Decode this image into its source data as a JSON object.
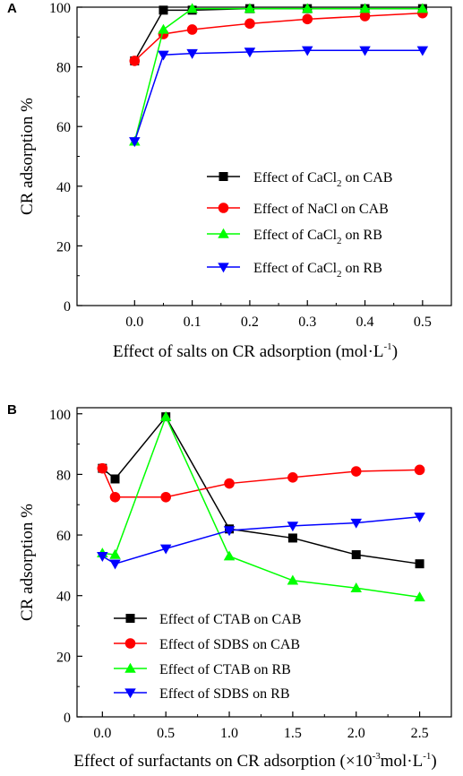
{
  "chart_data": [
    {
      "panel": "A",
      "type": "line",
      "xlabel": "Effect of salts on CR adsorption (mol·L",
      "xlabel_sup": "-1",
      "xlabel_end": ")",
      "ylabel": "CR adsorption %",
      "xlim": [
        -0.1,
        0.55
      ],
      "ylim": [
        0,
        100
      ],
      "xticks": [
        "0.0",
        "0.1",
        "0.2",
        "0.3",
        "0.4",
        "0.5"
      ],
      "yticks": [
        "0",
        "20",
        "40",
        "60",
        "80",
        "100"
      ],
      "x": [
        0,
        0.05,
        0.1,
        0.2,
        0.3,
        0.4,
        0.5
      ],
      "legend_position": "center-right",
      "series": [
        {
          "name": "Effect of CaCl",
          "name_sub": "2",
          "name_end": " on CAB",
          "color": "#000000",
          "marker": "square",
          "values": [
            82,
            99,
            99,
            99.5,
            99.5,
            99.5,
            99.5
          ]
        },
        {
          "name": "Effect of NaCl on CAB",
          "color": "#ff0000",
          "marker": "circle",
          "values": [
            82,
            91,
            92.5,
            94.5,
            96,
            97,
            98
          ]
        },
        {
          "name": "Effect of CaCl",
          "name_sub": "2",
          "name_end": " on RB",
          "color": "#00ff00",
          "marker": "triangle-up",
          "values": [
            55,
            92.5,
            99.5,
            99.5,
            99.5,
            99.5,
            99.5
          ]
        },
        {
          "name": "Effect of CaCl",
          "name_sub": "2",
          "name_end": " on RB",
          "color": "#0000ff",
          "marker": "triangle-down",
          "values": [
            55,
            84,
            84.5,
            85,
            85.5,
            85.5,
            85.5
          ]
        }
      ]
    },
    {
      "panel": "B",
      "type": "line",
      "xlabel": "Effect of surfactants on CR adsorption (×10",
      "xlabel_sup": "-3",
      "xlabel_end": "mol·L",
      "xlabel_sup2": "-1",
      "xlabel_end2": ")",
      "ylabel": "CR adsorption %",
      "xlim": [
        -0.2,
        2.75
      ],
      "ylim": [
        0,
        102
      ],
      "xticks": [
        "0.0",
        "0.5",
        "1.0",
        "1.5",
        "2.0",
        "2.5"
      ],
      "yticks": [
        "0",
        "20",
        "40",
        "60",
        "80",
        "100"
      ],
      "x": [
        0,
        0.1,
        0.5,
        1.0,
        1.5,
        2.0,
        2.5
      ],
      "legend_position": "bottom-left",
      "series": [
        {
          "name": "Effect of CTAB on CAB",
          "color": "#000000",
          "marker": "square",
          "values": [
            82,
            78.5,
            99,
            62,
            59,
            53.5,
            50.5
          ]
        },
        {
          "name": "Effect of SDBS on CAB",
          "color": "#ff0000",
          "marker": "circle",
          "values": [
            82,
            72.5,
            72.5,
            77,
            79,
            81,
            81.5
          ]
        },
        {
          "name": "Effect of CTAB on RB",
          "color": "#00ff00",
          "marker": "triangle-up",
          "values": [
            54,
            53.5,
            99,
            53,
            45,
            42.5,
            39.5
          ]
        },
        {
          "name": "Effect of SDBS on RB",
          "color": "#0000ff",
          "marker": "triangle-down",
          "values": [
            53,
            50.5,
            55.5,
            61.5,
            63,
            64,
            66
          ]
        }
      ]
    }
  ]
}
